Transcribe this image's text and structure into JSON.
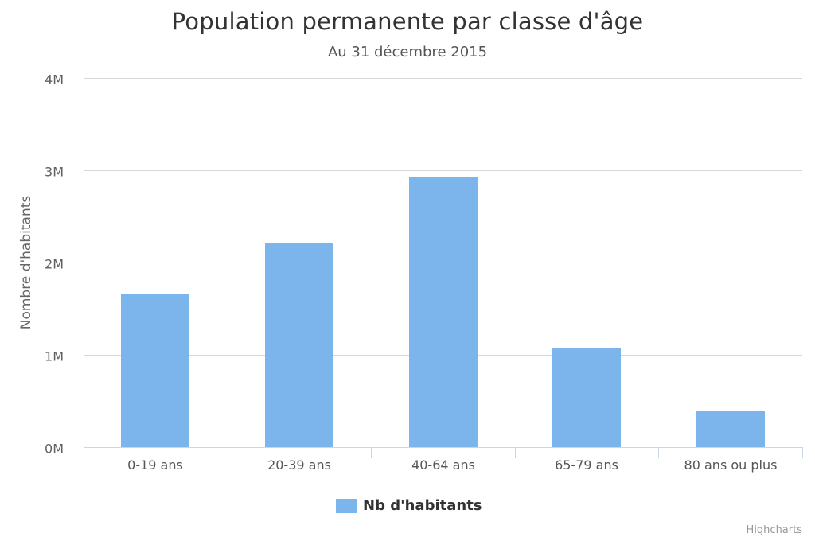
{
  "chart_data": {
    "type": "bar",
    "title": "Population permanente par classe d'âge",
    "subtitle": "Au 31 décembre 2015",
    "xlabel": "",
    "ylabel": "Nombre d'habitants",
    "categories": [
      "0-19 ans",
      "20-39 ans",
      "40-64 ans",
      "65-79 ans",
      "80 ans ou plus"
    ],
    "series": [
      {
        "name": "Nb d'habitants",
        "color": "#7cb5ec",
        "values": [
          1660000,
          2215000,
          2935000,
          1065000,
          400000
        ]
      }
    ],
    "ylim": [
      0,
      4000000
    ],
    "yticks": [
      0,
      1000000,
      2000000,
      3000000,
      4000000
    ],
    "ytick_labels": [
      "0M",
      "1M",
      "2M",
      "3M",
      "4M"
    ],
    "grid": true,
    "legend_position": "bottom-center"
  },
  "title": "Population permanente par classe d'âge",
  "subtitle": "Au 31 décembre 2015",
  "y_axis": {
    "title": "Nombre d'habitants",
    "ticks": [
      "0M",
      "1M",
      "2M",
      "3M",
      "4M"
    ]
  },
  "x_axis": {
    "labels": [
      "0-19 ans",
      "20-39 ans",
      "40-64 ans",
      "65-79 ans",
      "80 ans ou plus"
    ]
  },
  "legend": {
    "label": "Nb d'habitants",
    "color": "#7cb5ec"
  },
  "credits": "Highcharts"
}
